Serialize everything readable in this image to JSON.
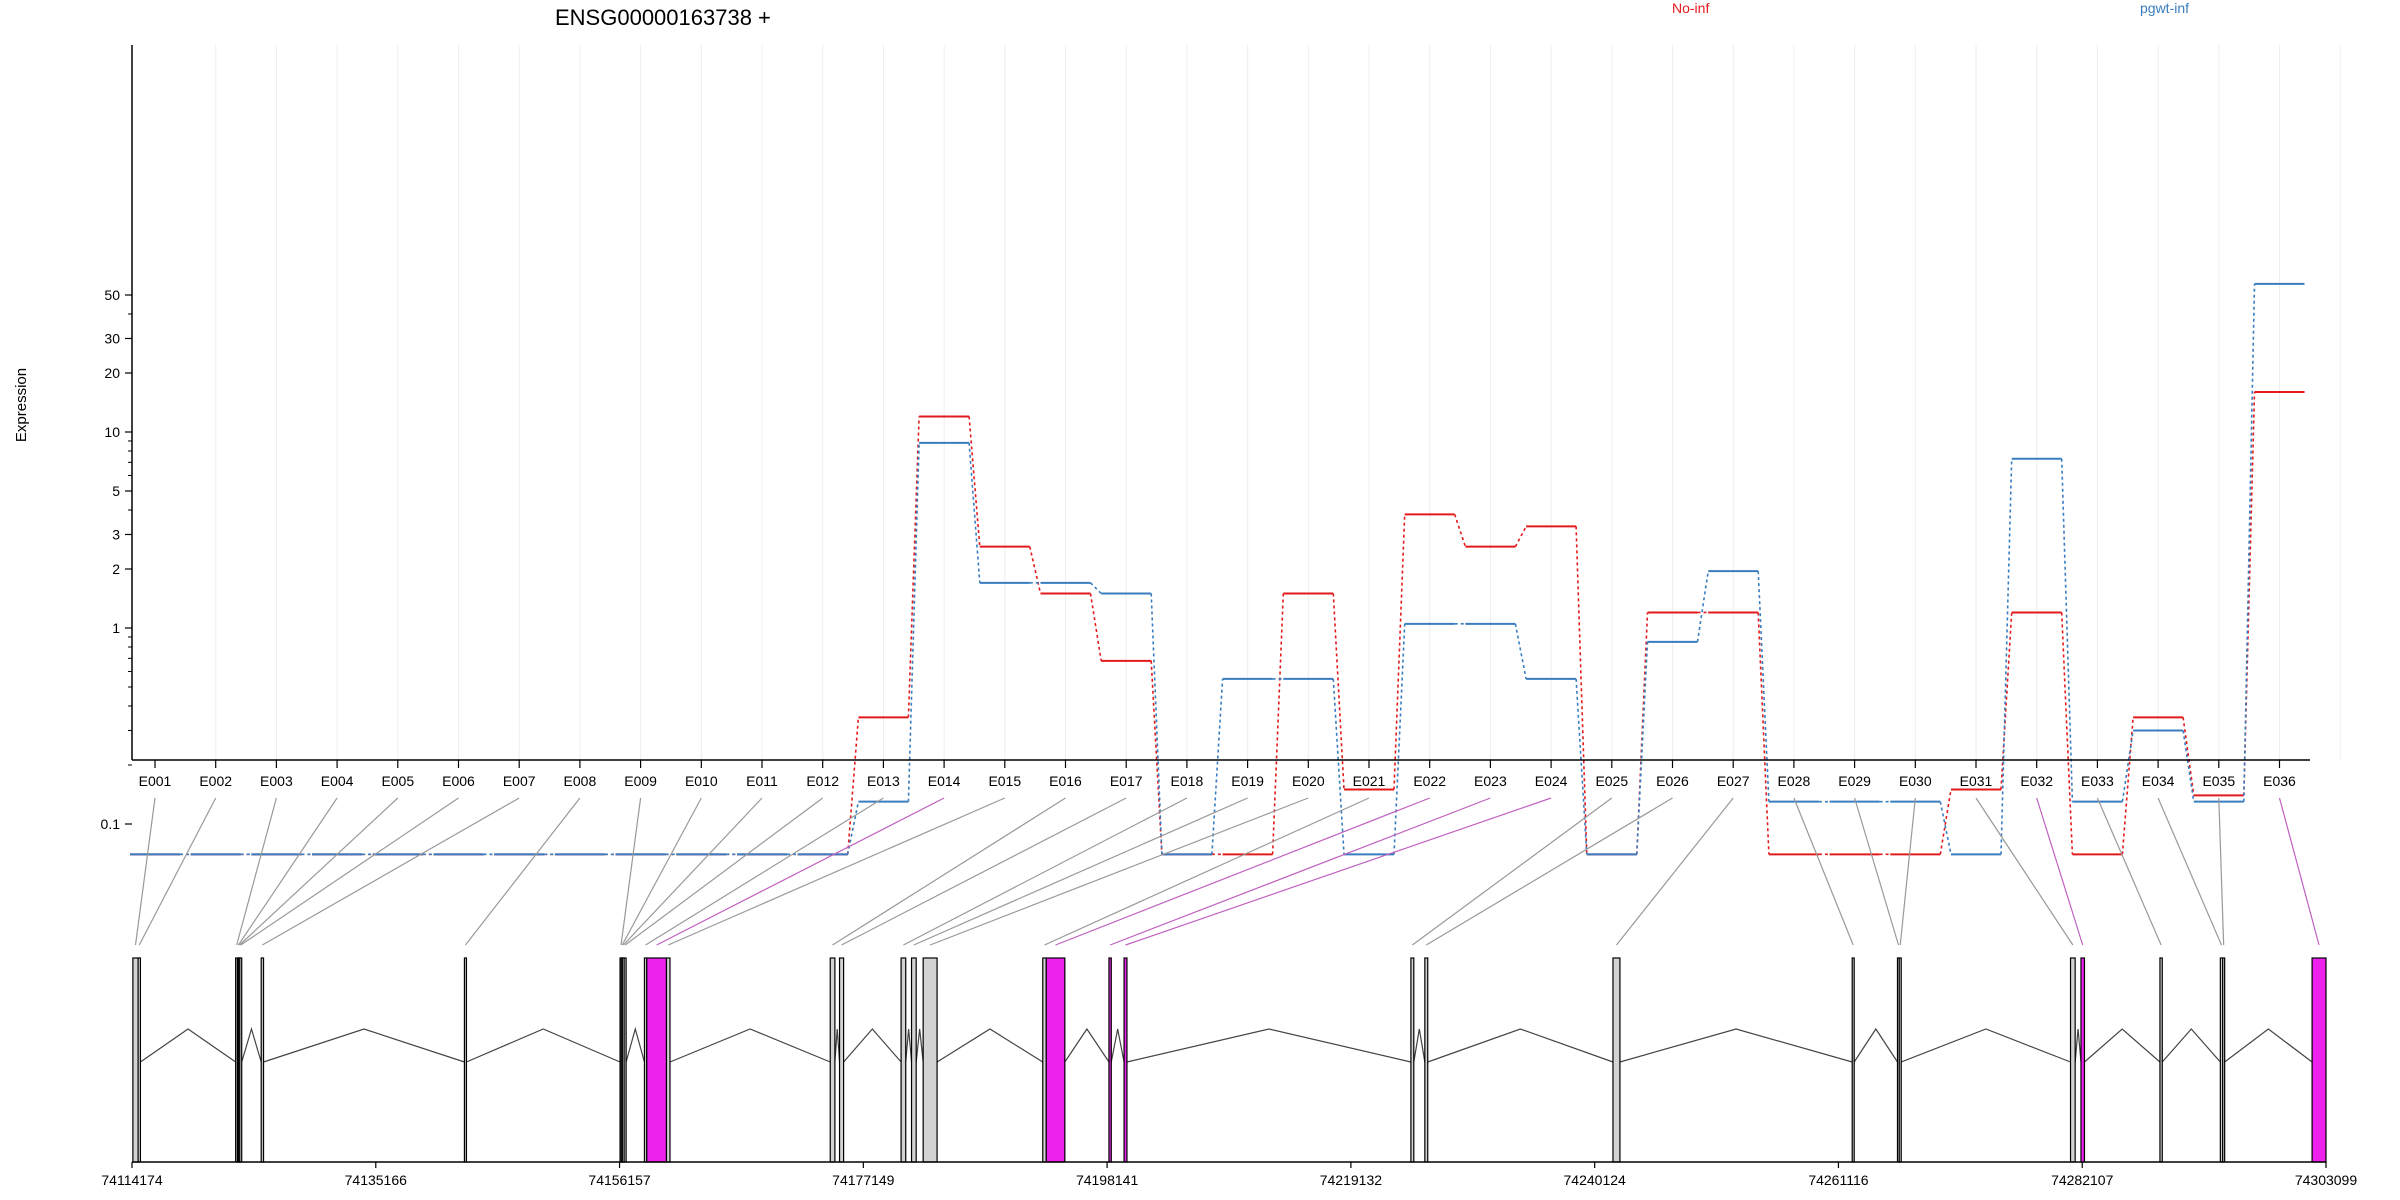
{
  "chart_data": {
    "type": "line",
    "title": "ENSG00000163738 +",
    "ylabel": "Expression",
    "y_scale": "log",
    "y_ticks": [
      "0.1",
      "1",
      "2",
      "3",
      "5",
      "10",
      "20",
      "30",
      "50"
    ],
    "legend": [
      "No-inf",
      "pgwt-inf"
    ],
    "categories": [
      "E001",
      "E002",
      "E003",
      "E004",
      "E005",
      "E006",
      "E007",
      "E008",
      "E009",
      "E010",
      "E011",
      "E012",
      "E013",
      "E014",
      "E015",
      "E016",
      "E017",
      "E018",
      "E019",
      "E020",
      "E021",
      "E022",
      "E023",
      "E024",
      "E025",
      "E026",
      "E027",
      "E028",
      "E029",
      "E030",
      "E031",
      "E032",
      "E033",
      "E034",
      "E035",
      "E036"
    ],
    "series": [
      {
        "name": "No-inf",
        "color": "#e31a1c",
        "values": [
          0.07,
          0.07,
          0.07,
          0.07,
          0.07,
          0.07,
          0.07,
          0.07,
          0.07,
          0.07,
          0.07,
          0.07,
          0.35,
          12,
          2.6,
          1.5,
          0.68,
          0.07,
          0.07,
          1.5,
          0.15,
          3.8,
          2.6,
          3.3,
          0.07,
          1.2,
          1.2,
          0.07,
          0.07,
          0.07,
          0.15,
          1.2,
          0.07,
          0.35,
          0.14,
          16
        ]
      },
      {
        "name": "pgwt-inf",
        "color": "#3a7dbf",
        "values": [
          0.07,
          0.07,
          0.07,
          0.07,
          0.07,
          0.07,
          0.07,
          0.07,
          0.07,
          0.07,
          0.07,
          0.07,
          0.13,
          8.8,
          1.7,
          1.7,
          1.5,
          0.07,
          0.55,
          0.55,
          0.07,
          1.05,
          1.05,
          0.55,
          0.07,
          0.85,
          1.95,
          0.13,
          0.13,
          0.13,
          0.07,
          7.3,
          0.13,
          0.3,
          0.13,
          57
        ]
      }
    ],
    "genome": {
      "ticks": [
        "74114174",
        "74135166",
        "74156157",
        "74177149",
        "74198141",
        "74219132",
        "74240124",
        "74261116",
        "74282107",
        "74303099"
      ],
      "start": 74114174,
      "end": 74303099,
      "exon_colors": {
        "normal": "#d3d3d3",
        "significant": "#ee22ee"
      },
      "exons": [
        {
          "id": "E001",
          "start": 74114250,
          "end": 74114700,
          "sig": false
        },
        {
          "id": "E002",
          "start": 74114700,
          "end": 74114900,
          "sig": false
        },
        {
          "id": "E003",
          "start": 74123100,
          "end": 74123250,
          "sig": false
        },
        {
          "id": "E004",
          "start": 74123250,
          "end": 74123350,
          "sig": false
        },
        {
          "id": "E005",
          "start": 74123350,
          "end": 74123450,
          "sig": false
        },
        {
          "id": "E006",
          "start": 74123450,
          "end": 74123550,
          "sig": false
        },
        {
          "id": "E007",
          "start": 74125300,
          "end": 74125500,
          "sig": false
        },
        {
          "id": "E008",
          "start": 74142800,
          "end": 74142950,
          "sig": false
        },
        {
          "id": "E009",
          "start": 74156200,
          "end": 74156300,
          "sig": false
        },
        {
          "id": "E010",
          "start": 74156300,
          "end": 74156400,
          "sig": false
        },
        {
          "id": "E011",
          "start": 74156400,
          "end": 74156550,
          "sig": false
        },
        {
          "id": "E012",
          "start": 74156550,
          "end": 74156700,
          "sig": false
        },
        {
          "id": "E013",
          "start": 74158300,
          "end": 74158500,
          "sig": false
        },
        {
          "id": "E014",
          "start": 74158500,
          "end": 74160200,
          "sig": true
        },
        {
          "id": "E015",
          "start": 74160200,
          "end": 74160500,
          "sig": false
        },
        {
          "id": "E016",
          "start": 74174300,
          "end": 74174700,
          "sig": false
        },
        {
          "id": "E017",
          "start": 74175100,
          "end": 74175450,
          "sig": false
        },
        {
          "id": "E018",
          "start": 74180400,
          "end": 74180800,
          "sig": false
        },
        {
          "id": "E019",
          "start": 74181300,
          "end": 74181700,
          "sig": false
        },
        {
          "id": "E020",
          "start": 74182300,
          "end": 74183500,
          "sig": false
        },
        {
          "id": "E021",
          "start": 74192600,
          "end": 74192900,
          "sig": false
        },
        {
          "id": "E022",
          "start": 74192900,
          "end": 74194500,
          "sig": true
        },
        {
          "id": "E023",
          "start": 74198300,
          "end": 74198500,
          "sig": true
        },
        {
          "id": "E024",
          "start": 74199600,
          "end": 74199850,
          "sig": true
        },
        {
          "id": "E025",
          "start": 74224300,
          "end": 74224550,
          "sig": false
        },
        {
          "id": "E026",
          "start": 74225500,
          "end": 74225750,
          "sig": false
        },
        {
          "id": "E027",
          "start": 74241700,
          "end": 74242300,
          "sig": false
        },
        {
          "id": "E028",
          "start": 74262300,
          "end": 74262450,
          "sig": false
        },
        {
          "id": "E029",
          "start": 74266200,
          "end": 74266350,
          "sig": false
        },
        {
          "id": "E030",
          "start": 74266350,
          "end": 74266500,
          "sig": false
        },
        {
          "id": "E031",
          "start": 74281100,
          "end": 74281500,
          "sig": false
        },
        {
          "id": "E032",
          "start": 74282000,
          "end": 74282300,
          "sig": true
        },
        {
          "id": "E033",
          "start": 74288800,
          "end": 74289000,
          "sig": false
        },
        {
          "id": "E034",
          "start": 74294000,
          "end": 74294200,
          "sig": false
        },
        {
          "id": "E035",
          "start": 74294200,
          "end": 74294350,
          "sig": false
        },
        {
          "id": "E036",
          "start": 74301900,
          "end": 74303099,
          "sig": true
        }
      ]
    }
  }
}
